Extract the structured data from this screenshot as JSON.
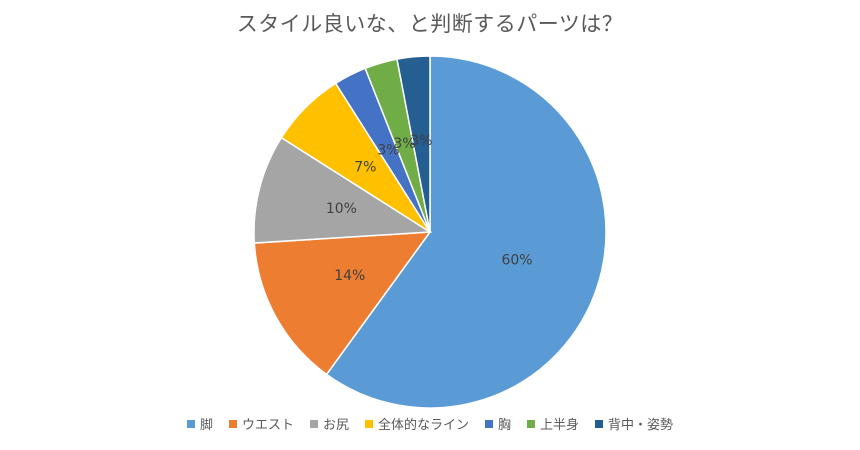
{
  "chart_data": {
    "type": "pie",
    "title": "スタイル良いな、と判断するパーツは？",
    "categories": [
      "脚",
      "ウエスト",
      "お尻",
      "全体的なライン",
      "胸",
      "上半身",
      "背中・姿勢"
    ],
    "values": [
      60,
      14,
      10,
      7,
      3,
      3,
      3
    ],
    "labels": [
      "60%",
      "14%",
      "10%",
      "7%",
      "3%",
      "3%",
      "3%"
    ],
    "colors": [
      "#5B9BD5",
      "#ED7D31",
      "#A5A5A5",
      "#FFC000",
      "#4472C4",
      "#70AD47",
      "#255E91"
    ],
    "legend_position": "bottom"
  }
}
